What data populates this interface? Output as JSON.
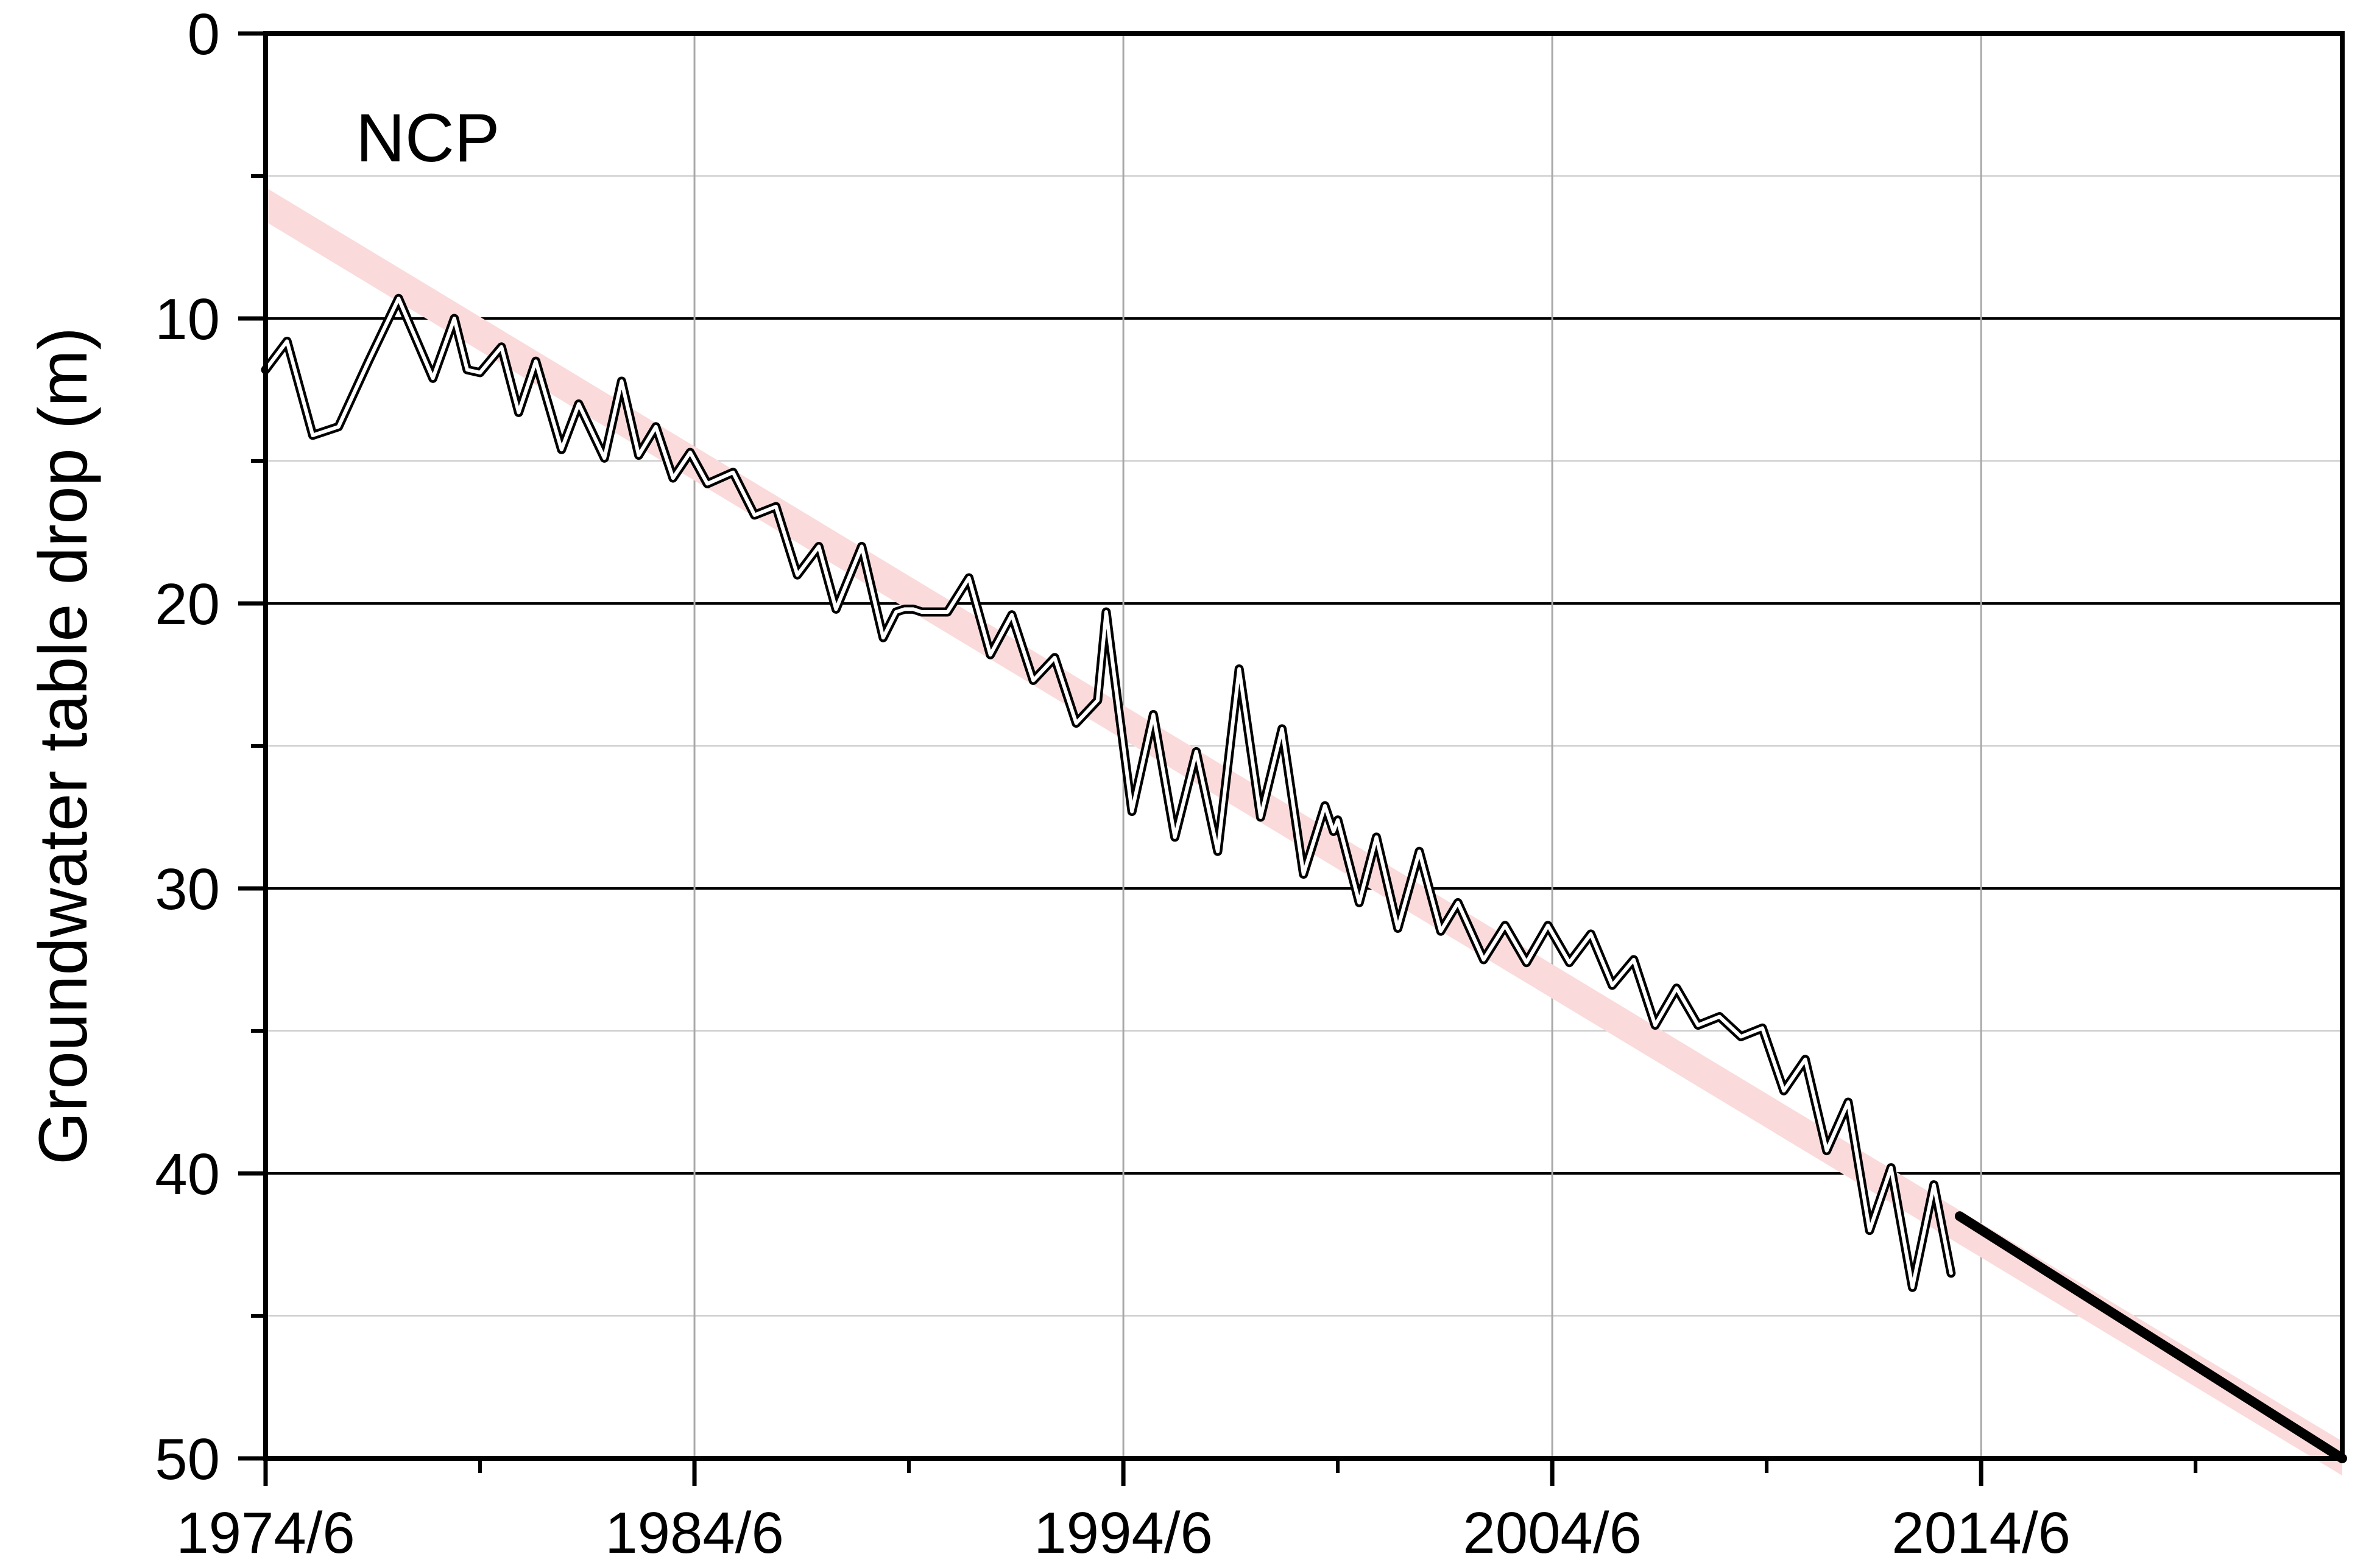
{
  "chart_data": {
    "type": "line",
    "title": "",
    "panel_label": "NCP",
    "xlabel": "",
    "ylabel": "Groundwater table drop (m)",
    "x_axis": {
      "unit": "year",
      "range": [
        1974.5,
        2022.92
      ],
      "major_ticks": [
        1974.5,
        1984.5,
        1994.5,
        2004.5,
        2014.5
      ],
      "tick_labels": [
        "1974/6",
        "1984/6",
        "1994/6",
        "2004/6",
        "2014/6"
      ],
      "minor_ticks": [
        1979.5,
        1989.5,
        1999.5,
        2009.5,
        2019.5
      ]
    },
    "y_axis": {
      "inverted": true,
      "range": [
        0,
        50
      ],
      "major_ticks": [
        0,
        10,
        20,
        30,
        40,
        50
      ],
      "tick_labels": [
        "0",
        "10",
        "20",
        "30",
        "40",
        "50"
      ],
      "minor_ticks": [
        5,
        15,
        25,
        35,
        45
      ]
    },
    "grid": true,
    "colors": {
      "observed_line": "#000000",
      "trend_band": "#fadada",
      "projection_line": "#000000"
    },
    "series": [
      {
        "kind": "observed",
        "x": [
          1974.5,
          1975.0,
          1975.6,
          1976.2,
          1976.9,
          1977.6,
          1978.4,
          1978.9,
          1979.2,
          1979.5,
          1980.0,
          1980.4,
          1980.8,
          1981.4,
          1981.8,
          1982.4,
          1982.8,
          1983.2,
          1983.6,
          1984.0,
          1984.4,
          1984.8,
          1985.4,
          1985.9,
          1986.4,
          1986.9,
          1987.4,
          1987.8,
          1988.4,
          1988.9,
          1989.2,
          1989.4,
          1989.6,
          1989.8,
          1990.4,
          1990.9,
          1991.4,
          1991.9,
          1992.4,
          1992.9,
          1993.4,
          1993.9,
          1994.1,
          1994.2,
          1994.7,
          1995.2,
          1995.7,
          1996.2,
          1996.7,
          1997.2,
          1997.7,
          1998.2,
          1998.7,
          1999.2,
          1999.4,
          1999.5,
          2000.0,
          2000.4,
          2000.9,
          2001.4,
          2001.9,
          2002.3,
          2002.9,
          2003.4,
          2003.9,
          2004.4,
          2004.9,
          2005.4,
          2005.9,
          2006.4,
          2006.9,
          2007.4,
          2007.9,
          2008.4,
          2008.9,
          2009.4,
          2009.9,
          2010.4,
          2010.9,
          2011.4,
          2011.9,
          2012.4,
          2012.9,
          2013.4,
          2013.8
        ],
        "y": [
          11.8,
          10.8,
          14.1,
          13.8,
          11.5,
          9.3,
          12.1,
          10.0,
          11.8,
          11.9,
          11.0,
          13.3,
          11.5,
          14.6,
          13.0,
          14.9,
          12.2,
          14.8,
          13.8,
          15.6,
          14.7,
          15.8,
          15.4,
          16.9,
          16.6,
          19.0,
          18.0,
          20.2,
          18.0,
          21.2,
          20.3,
          20.2,
          20.2,
          20.3,
          20.3,
          19.1,
          21.8,
          20.4,
          22.7,
          21.9,
          24.2,
          23.4,
          20.3,
          21.5,
          27.3,
          23.9,
          28.2,
          25.2,
          28.7,
          22.3,
          27.5,
          24.4,
          29.5,
          27.1,
          28.0,
          27.6,
          30.5,
          28.2,
          31.4,
          28.7,
          31.5,
          30.5,
          32.5,
          31.3,
          32.6,
          31.3,
          32.6,
          31.6,
          33.4,
          32.5,
          34.8,
          33.5,
          34.8,
          34.5,
          35.2,
          34.9,
          37.1,
          36.0,
          39.2,
          37.5,
          42.0,
          39.8,
          44.0,
          40.4,
          43.5
        ]
      },
      {
        "kind": "trend_band",
        "x": [
          1974.5,
          2022.92
        ],
        "y": [
          6.0,
          50.0
        ],
        "band_halfwidth": 0.6
      },
      {
        "kind": "projection",
        "x": [
          2014.0,
          2022.92
        ],
        "y": [
          41.5,
          50.0
        ]
      }
    ]
  }
}
